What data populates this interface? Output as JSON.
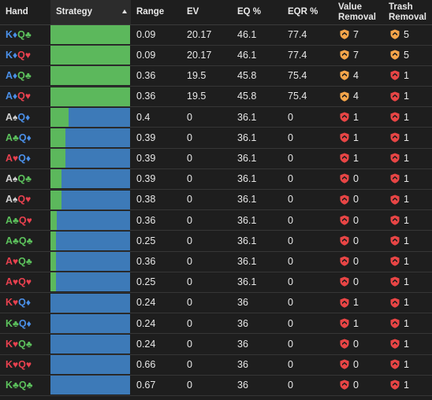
{
  "headers": {
    "hand": "Hand",
    "strategy": "Strategy",
    "range": "Range",
    "ev": "EV",
    "eq": "EQ %",
    "eqr": "EQR %",
    "value_removal_1": "Value",
    "value_removal_2": "Removal",
    "trash_removal_1": "Trash",
    "trash_removal_2": "Removal"
  },
  "colors": {
    "spade": "#d0d0d0",
    "heart": "#e8414f",
    "diamond": "#4a8fe7",
    "club": "#5cc15c",
    "fold_green": "#5cb85c",
    "call_blue": "#3d7ab8",
    "badge_orange": "#f5a54a",
    "badge_red": "#e84545"
  },
  "rows": [
    {
      "r1": "K",
      "s1": "♦",
      "c1": "diamond",
      "r2": "Q",
      "s2": "♣",
      "c2": "club",
      "strategy_green": 1.0,
      "range": "0.09",
      "ev": "20.17",
      "eq": "46.1",
      "eqr": "77.4",
      "vr": "7",
      "vr_color": "orange",
      "tr": "5",
      "tr_color": "orange"
    },
    {
      "r1": "K",
      "s1": "♦",
      "c1": "diamond",
      "r2": "Q",
      "s2": "♥",
      "c2": "heart",
      "strategy_green": 1.0,
      "range": "0.09",
      "ev": "20.17",
      "eq": "46.1",
      "eqr": "77.4",
      "vr": "7",
      "vr_color": "orange",
      "tr": "5",
      "tr_color": "orange"
    },
    {
      "r1": "A",
      "s1": "♦",
      "c1": "diamond",
      "r2": "Q",
      "s2": "♣",
      "c2": "club",
      "strategy_green": 1.0,
      "range": "0.36",
      "ev": "19.5",
      "eq": "45.8",
      "eqr": "75.4",
      "vr": "4",
      "vr_color": "orange",
      "tr": "1",
      "tr_color": "red"
    },
    {
      "r1": "A",
      "s1": "♦",
      "c1": "diamond",
      "r2": "Q",
      "s2": "♥",
      "c2": "heart",
      "strategy_green": 1.0,
      "range": "0.36",
      "ev": "19.5",
      "eq": "45.8",
      "eqr": "75.4",
      "vr": "4",
      "vr_color": "orange",
      "tr": "1",
      "tr_color": "red"
    },
    {
      "r1": "A",
      "s1": "♠",
      "c1": "spade",
      "r2": "Q",
      "s2": "♦",
      "c2": "diamond",
      "strategy_green": 0.23,
      "range": "0.4",
      "ev": "0",
      "eq": "36.1",
      "eqr": "0",
      "vr": "1",
      "vr_color": "red",
      "tr": "1",
      "tr_color": "red"
    },
    {
      "r1": "A",
      "s1": "♣",
      "c1": "club",
      "r2": "Q",
      "s2": "♦",
      "c2": "diamond",
      "strategy_green": 0.19,
      "range": "0.39",
      "ev": "0",
      "eq": "36.1",
      "eqr": "0",
      "vr": "1",
      "vr_color": "red",
      "tr": "1",
      "tr_color": "red"
    },
    {
      "r1": "A",
      "s1": "♥",
      "c1": "heart",
      "r2": "Q",
      "s2": "♦",
      "c2": "diamond",
      "strategy_green": 0.19,
      "range": "0.39",
      "ev": "0",
      "eq": "36.1",
      "eqr": "0",
      "vr": "1",
      "vr_color": "red",
      "tr": "1",
      "tr_color": "red"
    },
    {
      "r1": "A",
      "s1": "♠",
      "c1": "spade",
      "r2": "Q",
      "s2": "♣",
      "c2": "club",
      "strategy_green": 0.14,
      "range": "0.39",
      "ev": "0",
      "eq": "36.1",
      "eqr": "0",
      "vr": "0",
      "vr_color": "red",
      "tr": "1",
      "tr_color": "red"
    },
    {
      "r1": "A",
      "s1": "♠",
      "c1": "spade",
      "r2": "Q",
      "s2": "♥",
      "c2": "heart",
      "strategy_green": 0.14,
      "range": "0.38",
      "ev": "0",
      "eq": "36.1",
      "eqr": "0",
      "vr": "0",
      "vr_color": "red",
      "tr": "1",
      "tr_color": "red"
    },
    {
      "r1": "A",
      "s1": "♣",
      "c1": "club",
      "r2": "Q",
      "s2": "♥",
      "c2": "heart",
      "strategy_green": 0.08,
      "range": "0.36",
      "ev": "0",
      "eq": "36.1",
      "eqr": "0",
      "vr": "0",
      "vr_color": "red",
      "tr": "1",
      "tr_color": "red"
    },
    {
      "r1": "A",
      "s1": "♣",
      "c1": "club",
      "r2": "Q",
      "s2": "♣",
      "c2": "club",
      "strategy_green": 0.07,
      "range": "0.25",
      "ev": "0",
      "eq": "36.1",
      "eqr": "0",
      "vr": "0",
      "vr_color": "red",
      "tr": "1",
      "tr_color": "red"
    },
    {
      "r1": "A",
      "s1": "♥",
      "c1": "heart",
      "r2": "Q",
      "s2": "♣",
      "c2": "club",
      "strategy_green": 0.07,
      "range": "0.36",
      "ev": "0",
      "eq": "36.1",
      "eqr": "0",
      "vr": "0",
      "vr_color": "red",
      "tr": "1",
      "tr_color": "red"
    },
    {
      "r1": "A",
      "s1": "♥",
      "c1": "heart",
      "r2": "Q",
      "s2": "♥",
      "c2": "heart",
      "strategy_green": 0.07,
      "range": "0.25",
      "ev": "0",
      "eq": "36.1",
      "eqr": "0",
      "vr": "0",
      "vr_color": "red",
      "tr": "1",
      "tr_color": "red"
    },
    {
      "r1": "K",
      "s1": "♥",
      "c1": "heart",
      "r2": "Q",
      "s2": "♦",
      "c2": "diamond",
      "strategy_green": 0.0,
      "range": "0.24",
      "ev": "0",
      "eq": "36",
      "eqr": "0",
      "vr": "1",
      "vr_color": "red",
      "tr": "1",
      "tr_color": "red"
    },
    {
      "r1": "K",
      "s1": "♣",
      "c1": "club",
      "r2": "Q",
      "s2": "♦",
      "c2": "diamond",
      "strategy_green": 0.0,
      "range": "0.24",
      "ev": "0",
      "eq": "36",
      "eqr": "0",
      "vr": "1",
      "vr_color": "red",
      "tr": "1",
      "tr_color": "red"
    },
    {
      "r1": "K",
      "s1": "♥",
      "c1": "heart",
      "r2": "Q",
      "s2": "♣",
      "c2": "club",
      "strategy_green": 0.0,
      "range": "0.24",
      "ev": "0",
      "eq": "36",
      "eqr": "0",
      "vr": "0",
      "vr_color": "red",
      "tr": "1",
      "tr_color": "red"
    },
    {
      "r1": "K",
      "s1": "♥",
      "c1": "heart",
      "r2": "Q",
      "s2": "♥",
      "c2": "heart",
      "strategy_green": 0.0,
      "range": "0.66",
      "ev": "0",
      "eq": "36",
      "eqr": "0",
      "vr": "0",
      "vr_color": "red",
      "tr": "1",
      "tr_color": "red"
    },
    {
      "r1": "K",
      "s1": "♣",
      "c1": "club",
      "r2": "Q",
      "s2": "♣",
      "c2": "club",
      "strategy_green": 0.0,
      "range": "0.67",
      "ev": "0",
      "eq": "36",
      "eqr": "0",
      "vr": "0",
      "vr_color": "red",
      "tr": "1",
      "tr_color": "red"
    }
  ]
}
